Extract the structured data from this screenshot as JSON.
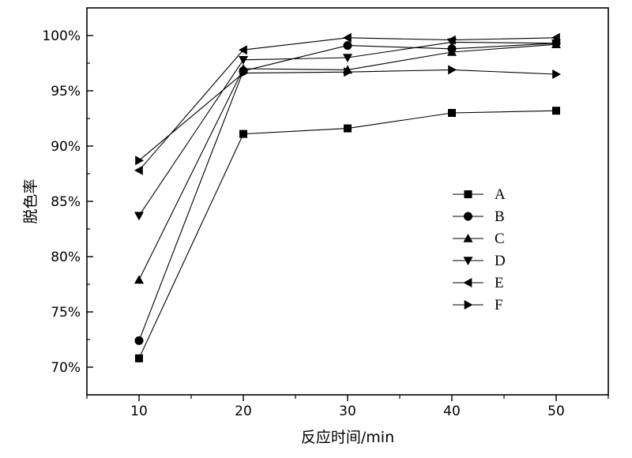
{
  "chart_data": {
    "type": "line",
    "title": "",
    "xlabel": "反应时间/min",
    "ylabel": "脱色率",
    "x": [
      10,
      20,
      30,
      40,
      50
    ],
    "xlim": [
      5,
      55
    ],
    "ylim": [
      67.5,
      102.5
    ],
    "x_ticks": [
      10,
      20,
      30,
      40,
      50
    ],
    "x_tick_labels": [
      "10",
      "20",
      "30",
      "40",
      "50"
    ],
    "y_ticks": [
      70,
      75,
      80,
      85,
      90,
      95,
      100
    ],
    "y_tick_labels": [
      "70%",
      "75%",
      "80%",
      "85%",
      "90%",
      "95%",
      "100%"
    ],
    "legend_position": "right",
    "series": [
      {
        "name": "A",
        "marker": "square",
        "values": [
          70.8,
          91.1,
          91.6,
          93.0,
          93.2
        ]
      },
      {
        "name": "B",
        "marker": "circle",
        "values": [
          72.4,
          96.8,
          99.1,
          98.8,
          99.3
        ]
      },
      {
        "name": "C",
        "marker": "triangle-up",
        "values": [
          77.9,
          97.0,
          96.9,
          98.5,
          99.2
        ]
      },
      {
        "name": "D",
        "marker": "triangle-down",
        "values": [
          83.7,
          97.8,
          98.0,
          99.4,
          99.3
        ]
      },
      {
        "name": "E",
        "marker": "triangle-left",
        "values": [
          87.8,
          98.7,
          99.8,
          99.6,
          99.8
        ]
      },
      {
        "name": "F",
        "marker": "triangle-right",
        "values": [
          88.7,
          96.6,
          96.7,
          96.9,
          96.5
        ]
      }
    ]
  }
}
